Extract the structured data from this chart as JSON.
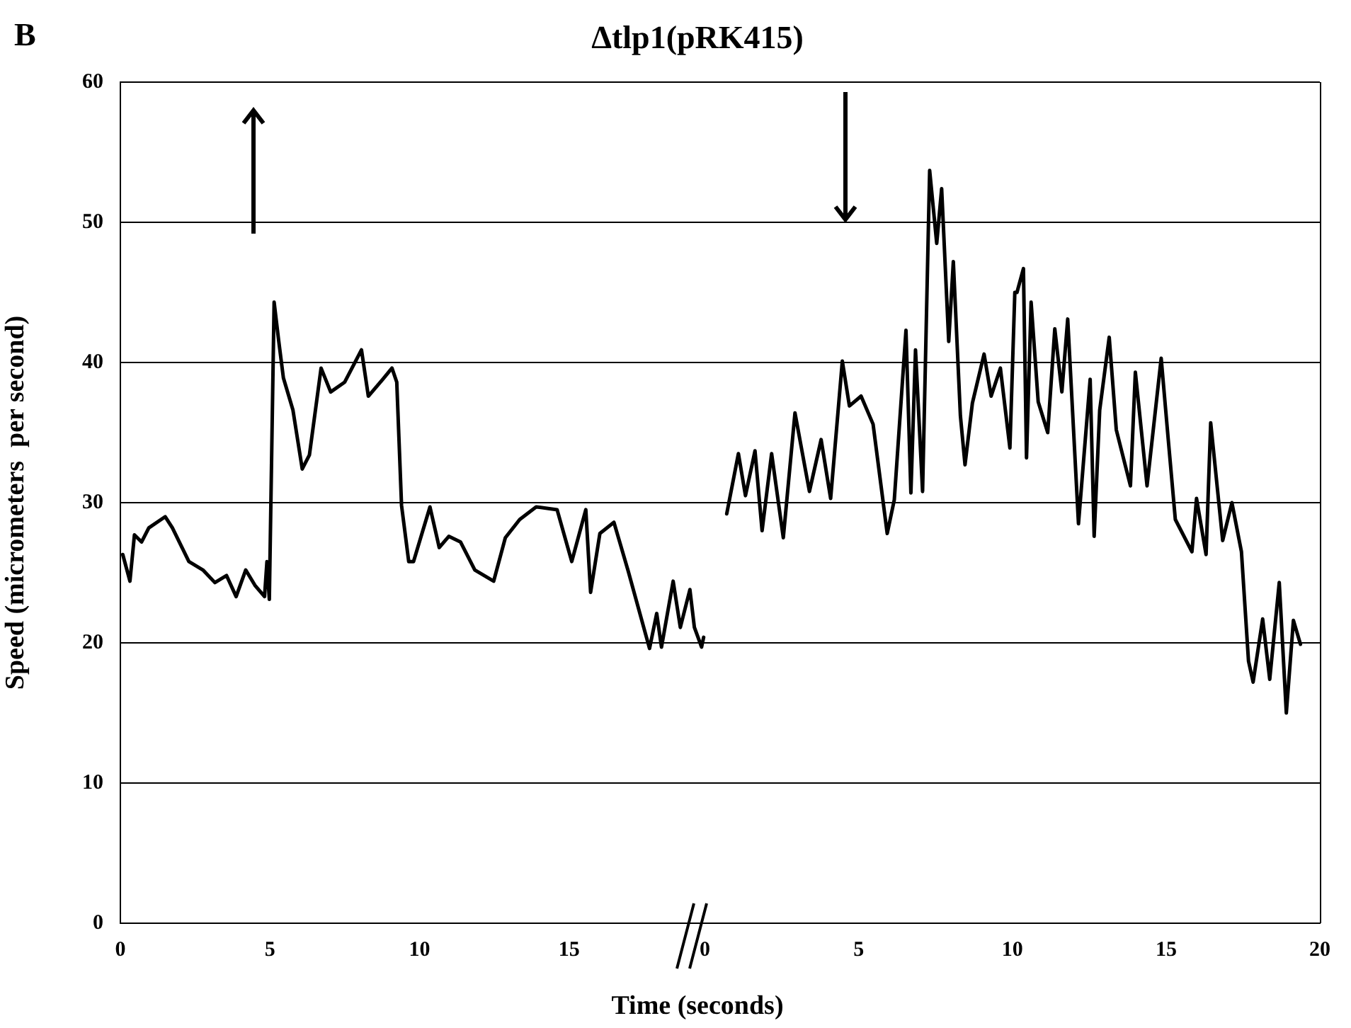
{
  "chart_data": [
    {
      "type": "line",
      "title": "Δtlp1(pRK415)",
      "ylabel": "Speed (micrometers  per second)",
      "xlabel": "Time (seconds)",
      "annotations": [
        "B"
      ],
      "x": [
        0.08,
        0.32,
        0.47,
        0.71,
        0.95,
        1.5,
        1.74,
        2.29,
        2.76,
        3.16,
        3.55,
        3.87,
        4.19,
        4.5,
        4.82,
        4.9,
        4.98,
        5.14,
        5.29,
        5.45,
        5.77,
        6.08,
        6.32,
        6.71,
        7.03,
        7.5,
        8.06,
        8.29,
        8.77,
        9.08,
        9.24,
        9.4,
        9.64,
        9.8,
        10.35,
        10.66,
        10.98,
        11.37,
        11.85,
        12.48,
        12.87,
        13.35,
        13.9,
        14.6,
        15.09,
        15.56,
        15.72,
        16.03,
        16.5,
        16.98,
        17.69,
        17.93,
        18.09,
        18.48,
        18.72,
        19.04,
        19.19,
        19.43,
        19.5
      ],
      "series": [
        {
          "color": "#000000",
          "values": [
            26.3,
            24.4,
            27.7,
            27.2,
            28.2,
            29.0,
            28.2,
            25.8,
            25.2,
            24.3,
            24.8,
            23.3,
            25.2,
            24.1,
            23.3,
            25.8,
            23.1,
            44.3,
            41.6,
            38.9,
            36.6,
            32.4,
            33.4,
            39.6,
            37.9,
            38.6,
            40.9,
            37.6,
            38.8,
            39.6,
            38.6,
            29.8,
            25.8,
            25.8,
            29.7,
            26.8,
            27.6,
            27.2,
            25.2,
            24.4,
            27.5,
            28.8,
            29.7,
            29.5,
            25.8,
            29.5,
            23.6,
            27.8,
            28.6,
            25.1,
            19.6,
            22.1,
            19.7,
            24.4,
            21.1,
            23.8,
            21.1,
            19.7,
            20.4
          ]
        }
      ],
      "xlim": [
        0,
        19.6
      ],
      "xticks": [
        0,
        5,
        10,
        15
      ],
      "ylim": [
        0,
        60
      ],
      "yticks": [
        0,
        10,
        20,
        30,
        40,
        50,
        60
      ],
      "grid": "y",
      "legend": false
    },
    {
      "type": "line",
      "x": [
        0.71,
        1.09,
        1.32,
        1.63,
        1.86,
        2.17,
        2.55,
        2.93,
        3.4,
        3.78,
        4.09,
        4.47,
        4.7,
        5.08,
        5.47,
        5.93,
        6.16,
        6.54,
        6.7,
        6.85,
        7.08,
        7.31,
        7.54,
        7.7,
        7.93,
        8.08,
        8.31,
        8.46,
        8.7,
        9.08,
        9.31,
        9.61,
        9.92,
        10.08,
        10.15,
        10.36,
        10.46,
        10.61,
        10.84,
        11.15,
        11.38,
        11.61,
        11.8,
        12.15,
        12.53,
        12.66,
        12.84,
        13.15,
        13.38,
        13.84,
        14.0,
        14.38,
        14.84,
        15.07,
        15.3,
        15.84,
        15.99,
        16.3,
        16.45,
        16.84,
        17.14,
        17.45,
        17.68,
        17.83,
        18.14,
        18.37,
        18.68,
        18.91,
        19.14,
        19.37
      ],
      "series": [
        {
          "color": "#000000",
          "values": [
            29.2,
            33.5,
            30.5,
            33.7,
            28.0,
            33.5,
            27.5,
            36.4,
            30.8,
            34.5,
            30.3,
            40.1,
            36.9,
            37.6,
            35.6,
            27.8,
            30.2,
            42.3,
            30.7,
            40.9,
            30.8,
            53.7,
            48.5,
            52.4,
            41.5,
            47.2,
            36.2,
            32.7,
            37.1,
            40.6,
            37.6,
            39.6,
            33.9,
            45.0,
            45.0,
            46.7,
            33.2,
            44.3,
            37.2,
            35.0,
            42.4,
            37.9,
            43.1,
            28.5,
            38.8,
            27.6,
            36.6,
            41.8,
            35.2,
            31.2,
            39.3,
            31.2,
            40.3,
            34.5,
            28.8,
            26.5,
            30.3,
            26.3,
            35.7,
            27.3,
            30.0,
            26.5,
            18.7,
            17.2,
            21.7,
            17.4,
            24.3,
            15.0,
            21.6,
            19.9
          ]
        }
      ],
      "xlim": [
        0,
        20
      ],
      "xticks": [
        0,
        5,
        10,
        15,
        20
      ],
      "ylim": [
        0,
        60
      ],
      "yticks": [
        0,
        10,
        20,
        30,
        40,
        50,
        60
      ],
      "grid": "y",
      "legend": false,
      "tick_labels": "x"
    }
  ]
}
